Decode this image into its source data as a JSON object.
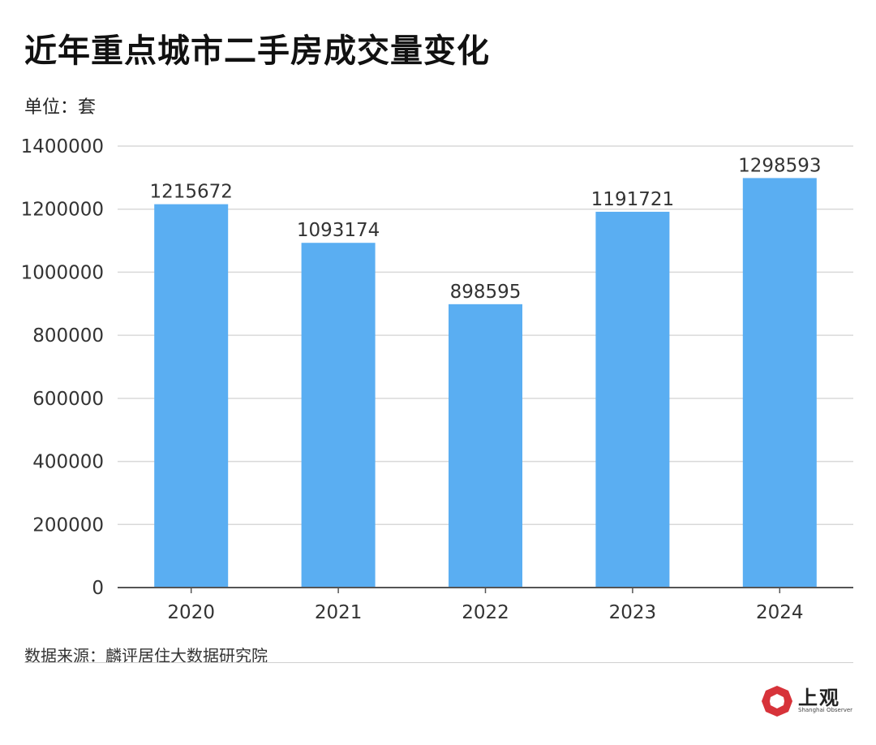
{
  "title": "近年重点城市二手房成交量变化",
  "unit_label": "单位：套",
  "source": "数据来源：麟评居住大数据研究院",
  "logo": {
    "text": "上观",
    "subtitle": "Shanghai Observer",
    "icon": "shanghai-observer-logo-icon",
    "color": "#d7333a"
  },
  "colors": {
    "bar": "#5aaef2",
    "grid": "#d9d9d9",
    "axis": "#555555"
  },
  "chart_data": {
    "type": "bar",
    "title": "近年重点城市二手房成交量变化",
    "xlabel": "",
    "ylabel": "单位：套",
    "categories": [
      "2020",
      "2021",
      "2022",
      "2023",
      "2024"
    ],
    "values": [
      1215672,
      1093174,
      898595,
      1191721,
      1298593
    ],
    "data_labels": [
      "1215672",
      "1093174",
      "898595",
      "1191721",
      "1298593"
    ],
    "ylim": [
      0,
      1400000
    ],
    "yticks": [
      0,
      200000,
      400000,
      600000,
      800000,
      1000000,
      1200000,
      1400000
    ],
    "ytick_labels": [
      "0",
      "200000",
      "400000",
      "600000",
      "800000",
      "1000000",
      "1200000",
      "1400000"
    ],
    "grid": true,
    "legend": "none"
  }
}
